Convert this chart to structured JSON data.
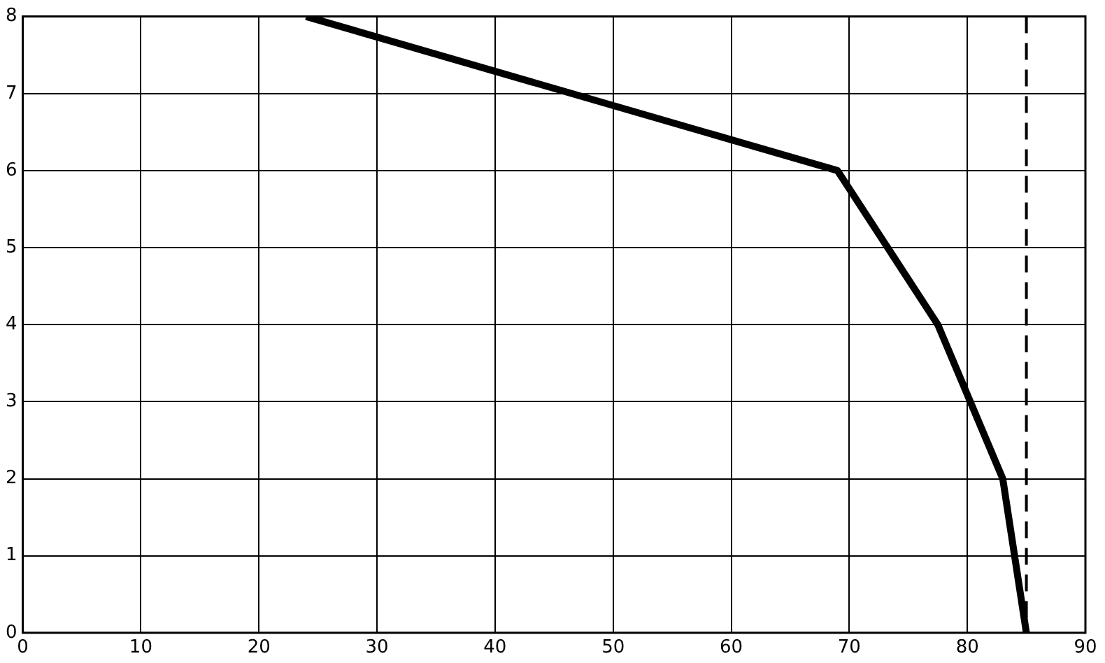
{
  "chart_data": {
    "type": "line",
    "x": [
      24,
      69,
      77.5,
      83,
      85
    ],
    "series": [
      {
        "color": "#000000",
        "values": [
          8,
          6,
          4,
          2,
          0
        ]
      }
    ],
    "xlim": [
      0,
      90
    ],
    "xticks": [
      0,
      10,
      20,
      30,
      40,
      50,
      60,
      70,
      80,
      90
    ],
    "ylim": [
      0,
      8
    ],
    "yticks": [
      0,
      1,
      2,
      3,
      4,
      5,
      6,
      7,
      8
    ],
    "grid": true,
    "legend": false,
    "marker": "none",
    "line_style": "solid",
    "ref_lines": [
      {
        "axis": "x",
        "value": 85,
        "color": "#000000",
        "line_style": "dashed"
      }
    ]
  }
}
